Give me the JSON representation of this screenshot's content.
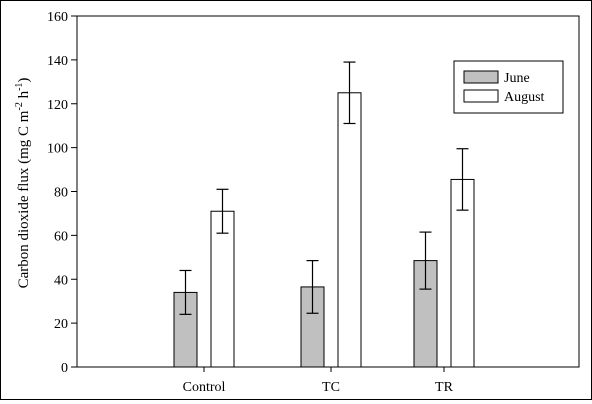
{
  "chart_data": {
    "type": "bar",
    "categories": [
      "Control",
      "TC",
      "TR"
    ],
    "series": [
      {
        "name": "June",
        "values": [
          34,
          36.5,
          48.5
        ],
        "errors": [
          10,
          12,
          13
        ],
        "color": "#c0c0c0"
      },
      {
        "name": "August",
        "values": [
          71,
          125,
          85.5
        ],
        "errors": [
          10,
          14,
          14
        ],
        "color": "#ffffff"
      }
    ],
    "title": "",
    "xlabel": "",
    "ylabel": {
      "main": "Carbon dioxide flux (mg C m",
      "sup1": "-2",
      "mid": " h",
      "sup2": "-1",
      "end": ")"
    },
    "ylim": [
      0,
      160
    ],
    "yticks": [
      0,
      20,
      40,
      60,
      80,
      100,
      120,
      140,
      160
    ],
    "grid": false,
    "legend_position": "top-right"
  }
}
